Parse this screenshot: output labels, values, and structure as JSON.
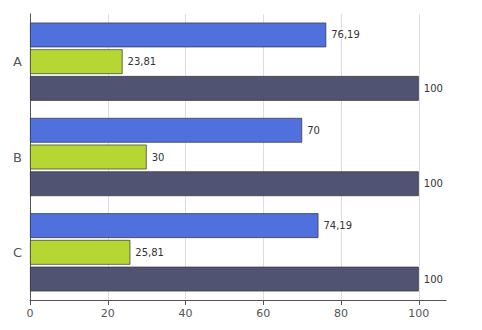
{
  "chart_data": {
    "type": "bar",
    "orientation": "horizontal",
    "categories": [
      "A",
      "B",
      "C"
    ],
    "series": [
      {
        "values": [
          76.19,
          70,
          74.19
        ],
        "value_labels": [
          "76,19",
          "70",
          "74,19"
        ]
      },
      {
        "values": [
          23.81,
          30,
          25.81
        ],
        "value_labels": [
          "23,81",
          "30",
          "25,81"
        ]
      },
      {
        "values": [
          100,
          100,
          100
        ],
        "value_labels": [
          "100",
          "100",
          "100"
        ]
      }
    ],
    "xlim": [
      0,
      107
    ],
    "xticks": [
      0,
      20,
      40,
      60,
      80,
      100
    ],
    "grid": true,
    "data_labels": true
  }
}
